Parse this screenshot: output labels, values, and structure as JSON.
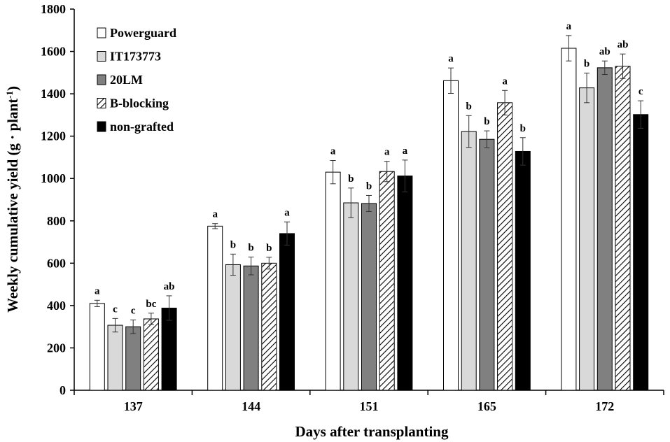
{
  "chart_data": {
    "type": "bar",
    "xlabel": "Days after transplanting",
    "ylabel": "Weekly cumulative yield (g · plant",
    "ylabel_sup": "-1",
    "ylabel_close": ")",
    "ylim": [
      0,
      1800
    ],
    "yticks": [
      0,
      200,
      400,
      600,
      800,
      1000,
      1200,
      1400,
      1600,
      1800
    ],
    "categories": [
      "137",
      "144",
      "151",
      "165",
      "172"
    ],
    "legend_position": "top-left",
    "grid": false,
    "series": [
      {
        "name": "Powerguard",
        "fill": "#ffffff",
        "pattern": "none",
        "values": [
          410,
          775,
          1030,
          1462,
          1615
        ],
        "errors": [
          15,
          12,
          55,
          60,
          60
        ],
        "letters": [
          "a",
          "a",
          "a",
          "a",
          "a"
        ]
      },
      {
        "name": "IT173773",
        "fill": "#d9d9d9",
        "pattern": "none",
        "values": [
          307,
          593,
          885,
          1222,
          1428
        ],
        "errors": [
          32,
          50,
          70,
          75,
          70
        ],
        "letters": [
          "c",
          "b",
          "b",
          "b",
          "b"
        ]
      },
      {
        "name": "20LM",
        "fill": "#808080",
        "pattern": "none",
        "values": [
          300,
          587,
          882,
          1185,
          1523
        ],
        "errors": [
          32,
          42,
          38,
          40,
          32
        ],
        "letters": [
          "c",
          "b",
          "b",
          "b",
          "ab"
        ]
      },
      {
        "name": "B-blocking",
        "fill": "#ffffff",
        "pattern": "diagonal",
        "values": [
          337,
          600,
          1033,
          1358,
          1530
        ],
        "errors": [
          27,
          28,
          48,
          58,
          58
        ],
        "letters": [
          "bc",
          "b",
          "a",
          "a",
          "ab"
        ]
      },
      {
        "name": "non-grafted",
        "fill": "#000000",
        "pattern": "none",
        "values": [
          388,
          740,
          1012,
          1128,
          1302
        ],
        "errors": [
          58,
          55,
          75,
          65,
          65
        ],
        "letters": [
          "ab",
          "a",
          "a",
          "b",
          "c"
        ]
      }
    ]
  }
}
